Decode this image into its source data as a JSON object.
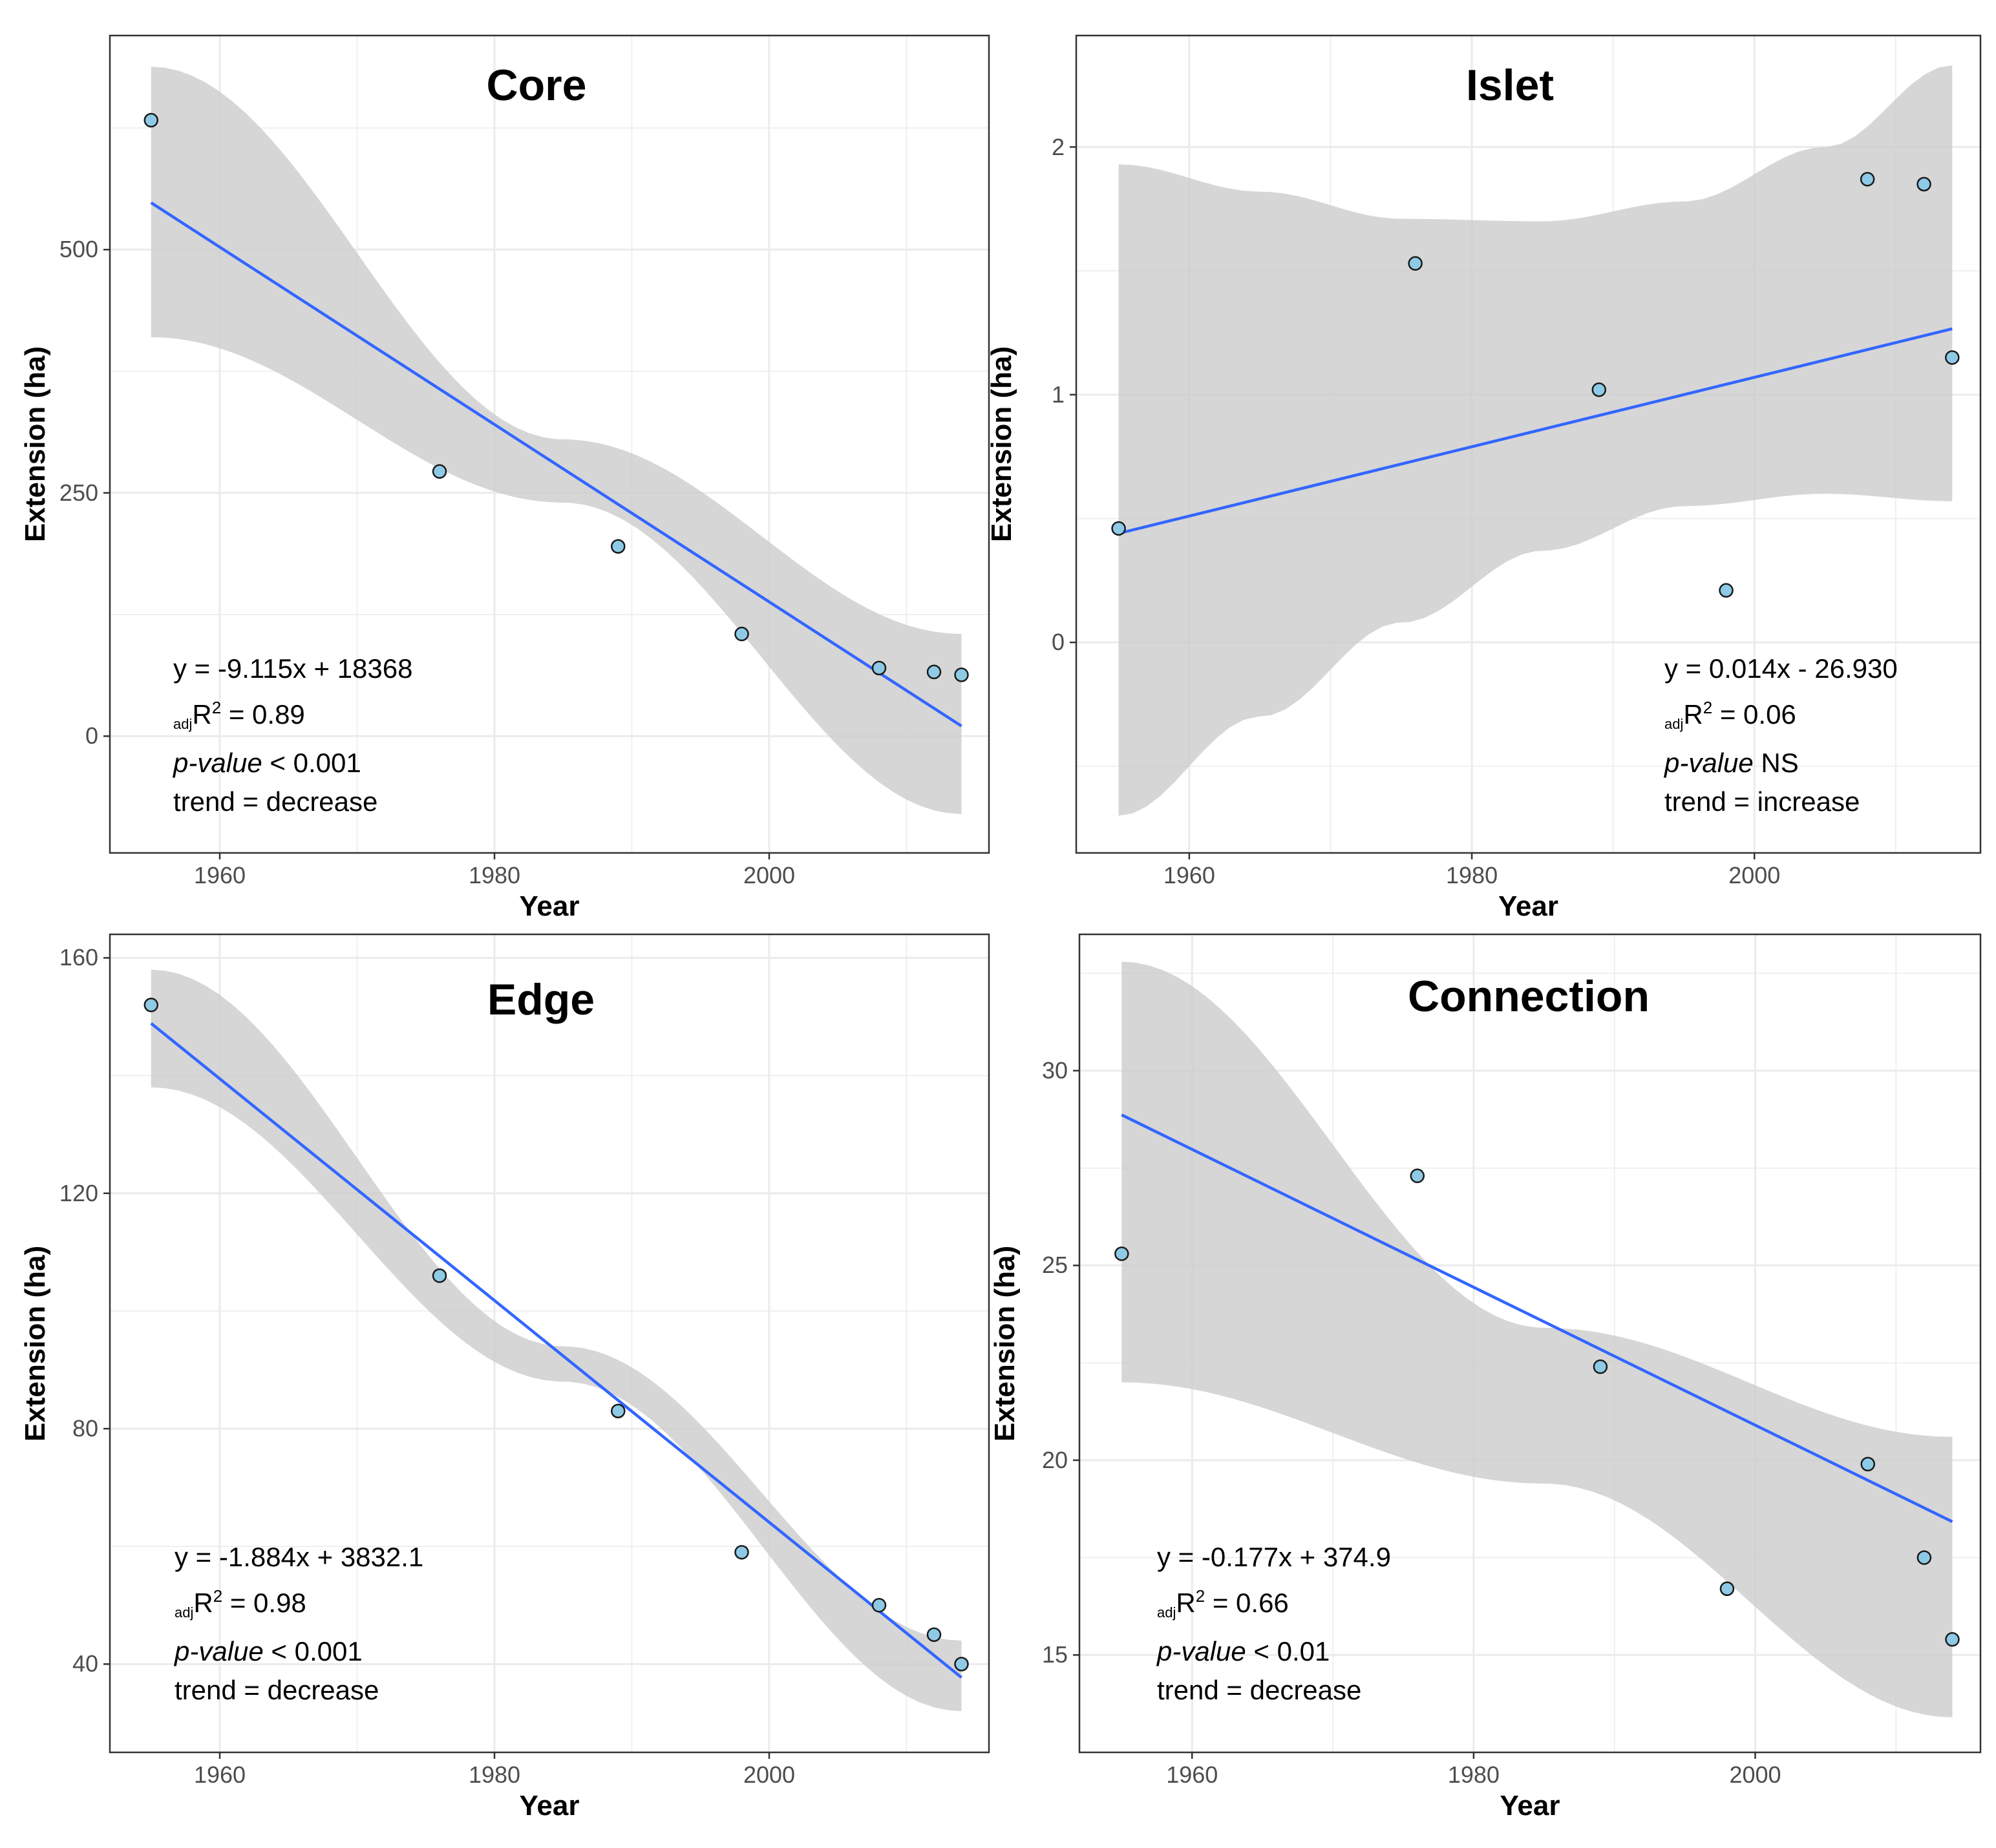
{
  "chart_data": [
    {
      "type": "scatter",
      "title": "Core",
      "xlabel": "Year",
      "ylabel": "Extension (ha)",
      "xlim": [
        1952,
        2016
      ],
      "ylim": [
        -120,
        720
      ],
      "x_ticks": [
        1960,
        1980,
        2000
      ],
      "y_ticks": [
        0,
        250,
        500
      ],
      "points": [
        [
          1955,
          633
        ],
        [
          1976,
          272
        ],
        [
          1989,
          195
        ],
        [
          1998,
          105
        ],
        [
          2008,
          70
        ],
        [
          2012,
          66
        ],
        [
          2014,
          63
        ]
      ],
      "fit": {
        "slope": -9.115,
        "intercept": 18368,
        "x_range": [
          1955,
          2014
        ],
        "ci_lower": [
          [
            1955,
            410
          ],
          [
            1985,
            240
          ],
          [
            2014,
            -80
          ]
        ],
        "ci_upper": [
          [
            1955,
            688
          ],
          [
            1985,
            305
          ],
          [
            2014,
            105
          ]
        ]
      },
      "annotation": {
        "equation": "y = -9.115x + 18368",
        "r2_sub": "adj",
        "r2_main": "R",
        "r2_sup": "2",
        "r2_value": " = 0.89",
        "p_label": "p-value",
        "p_value": " < 0.001",
        "trend": "trend = decrease"
      }
    },
    {
      "type": "scatter",
      "title": "Islet",
      "xlabel": "Year",
      "ylabel": "Extension (ha)",
      "xlim": [
        1952,
        2016
      ],
      "ylim": [
        -0.85,
        2.45
      ],
      "x_ticks": [
        1960,
        1980,
        2000
      ],
      "y_ticks": [
        0,
        1,
        2
      ],
      "points": [
        [
          1955,
          0.46
        ],
        [
          1976,
          1.53
        ],
        [
          1989,
          1.02
        ],
        [
          1998,
          0.21
        ],
        [
          2008,
          1.87
        ],
        [
          2012,
          1.85
        ],
        [
          2014,
          1.15
        ]
      ],
      "fit": {
        "slope": 0.014,
        "intercept": -26.93,
        "x_range": [
          1955,
          2014
        ],
        "ci_lower": [
          [
            1955,
            -0.7
          ],
          [
            1965,
            -0.3
          ],
          [
            1975,
            0.08
          ],
          [
            1985,
            0.37
          ],
          [
            1995,
            0.55
          ],
          [
            2005,
            0.6
          ],
          [
            2014,
            0.57
          ]
        ],
        "ci_upper": [
          [
            1955,
            1.93
          ],
          [
            1965,
            1.82
          ],
          [
            1975,
            1.71
          ],
          [
            1985,
            1.7
          ],
          [
            1995,
            1.78
          ],
          [
            2005,
            2.0
          ],
          [
            2014,
            2.33
          ]
        ]
      },
      "annotation": {
        "equation": "y = 0.014x - 26.930",
        "r2_sub": "adj",
        "r2_main": "R",
        "r2_sup": "2",
        "r2_value": " = 0.06",
        "p_label": "p-value",
        "p_value": " NS",
        "trend": "trend = increase"
      }
    },
    {
      "type": "scatter",
      "title": "Edge",
      "xlabel": "Year",
      "ylabel": "Extension (ha)",
      "xlim": [
        1952,
        2016
      ],
      "ylim": [
        25,
        164
      ],
      "x_ticks": [
        1960,
        1980,
        2000
      ],
      "y_ticks": [
        40,
        80,
        120,
        160
      ],
      "points": [
        [
          1955,
          152
        ],
        [
          1976,
          106
        ],
        [
          1989,
          83
        ],
        [
          1998,
          59
        ],
        [
          2008,
          50
        ],
        [
          2012,
          45
        ],
        [
          2014,
          40
        ]
      ],
      "fit": {
        "slope": -1.884,
        "intercept": 3832.1,
        "x_range": [
          1955,
          2014
        ],
        "ci_lower": [
          [
            1955,
            138
          ],
          [
            1985,
            88
          ],
          [
            2014,
            32
          ]
        ],
        "ci_upper": [
          [
            1955,
            158
          ],
          [
            1985,
            94
          ],
          [
            2014,
            44
          ]
        ]
      },
      "annotation": {
        "equation": "y = -1.884x + 3832.1",
        "r2_sub": "adj",
        "r2_main": "R",
        "r2_sup": "2",
        "r2_value": " = 0.98",
        "p_label": "p-value",
        "p_value": " < 0.001",
        "trend": "trend = decrease"
      }
    },
    {
      "type": "scatter",
      "title": "Connection",
      "xlabel": "Year",
      "ylabel": "Extension (ha)",
      "xlim": [
        1952,
        2016
      ],
      "ylim": [
        12.5,
        33.5
      ],
      "x_ticks": [
        1960,
        1980,
        2000
      ],
      "y_ticks": [
        15,
        20,
        25,
        30
      ],
      "points": [
        [
          1955,
          25.3
        ],
        [
          1976,
          27.3
        ],
        [
          1989,
          22.4
        ],
        [
          1998,
          16.7
        ],
        [
          2008,
          19.9
        ],
        [
          2012,
          17.5
        ],
        [
          2014,
          15.4
        ]
      ],
      "fit": {
        "slope": -0.177,
        "intercept": 374.9,
        "x_range": [
          1955,
          2014
        ],
        "ci_lower": [
          [
            1955,
            22.0
          ],
          [
            1985,
            19.4
          ],
          [
            2014,
            13.4
          ]
        ],
        "ci_upper": [
          [
            1955,
            32.8
          ],
          [
            1985,
            23.4
          ],
          [
            2014,
            20.6
          ]
        ]
      },
      "annotation": {
        "equation": "y = -0.177x + 374.9",
        "r2_sub": "adj",
        "r2_main": "R",
        "r2_sup": "2",
        "r2_value": " = 0.66",
        "p_label": "p-value",
        "p_value": " < 0.01",
        "trend": "trend = decrease"
      }
    }
  ]
}
